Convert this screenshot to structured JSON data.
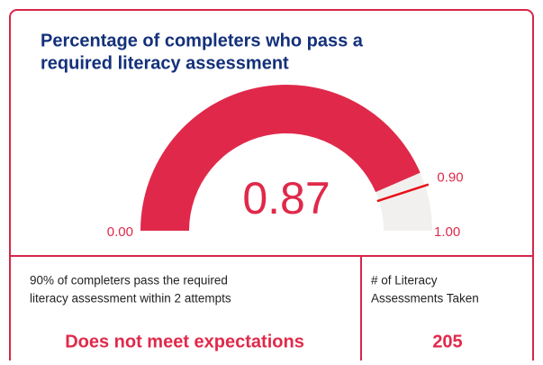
{
  "chart_data": {
    "type": "gauge",
    "title": [
      "Percentage of completers who pass a",
      "required literacy assessment"
    ],
    "value": 0.87,
    "value_label": "0.87",
    "min": {
      "value": 0,
      "label": "0.00"
    },
    "max": {
      "value": 1,
      "label": "1.00"
    },
    "target": {
      "value": 0.9,
      "label": "0.90"
    },
    "color": "#e0294a",
    "track_color": "#f2f0ef",
    "target_color": "#e8101a"
  },
  "panels": [
    {
      "description": [
        "90% of completers pass the required",
        "literacy assessment within 2 attempts"
      ],
      "result": "Does not meet expectations"
    },
    {
      "description": [
        "# of Literacy",
        "Assessments Taken"
      ],
      "result": "205"
    }
  ]
}
